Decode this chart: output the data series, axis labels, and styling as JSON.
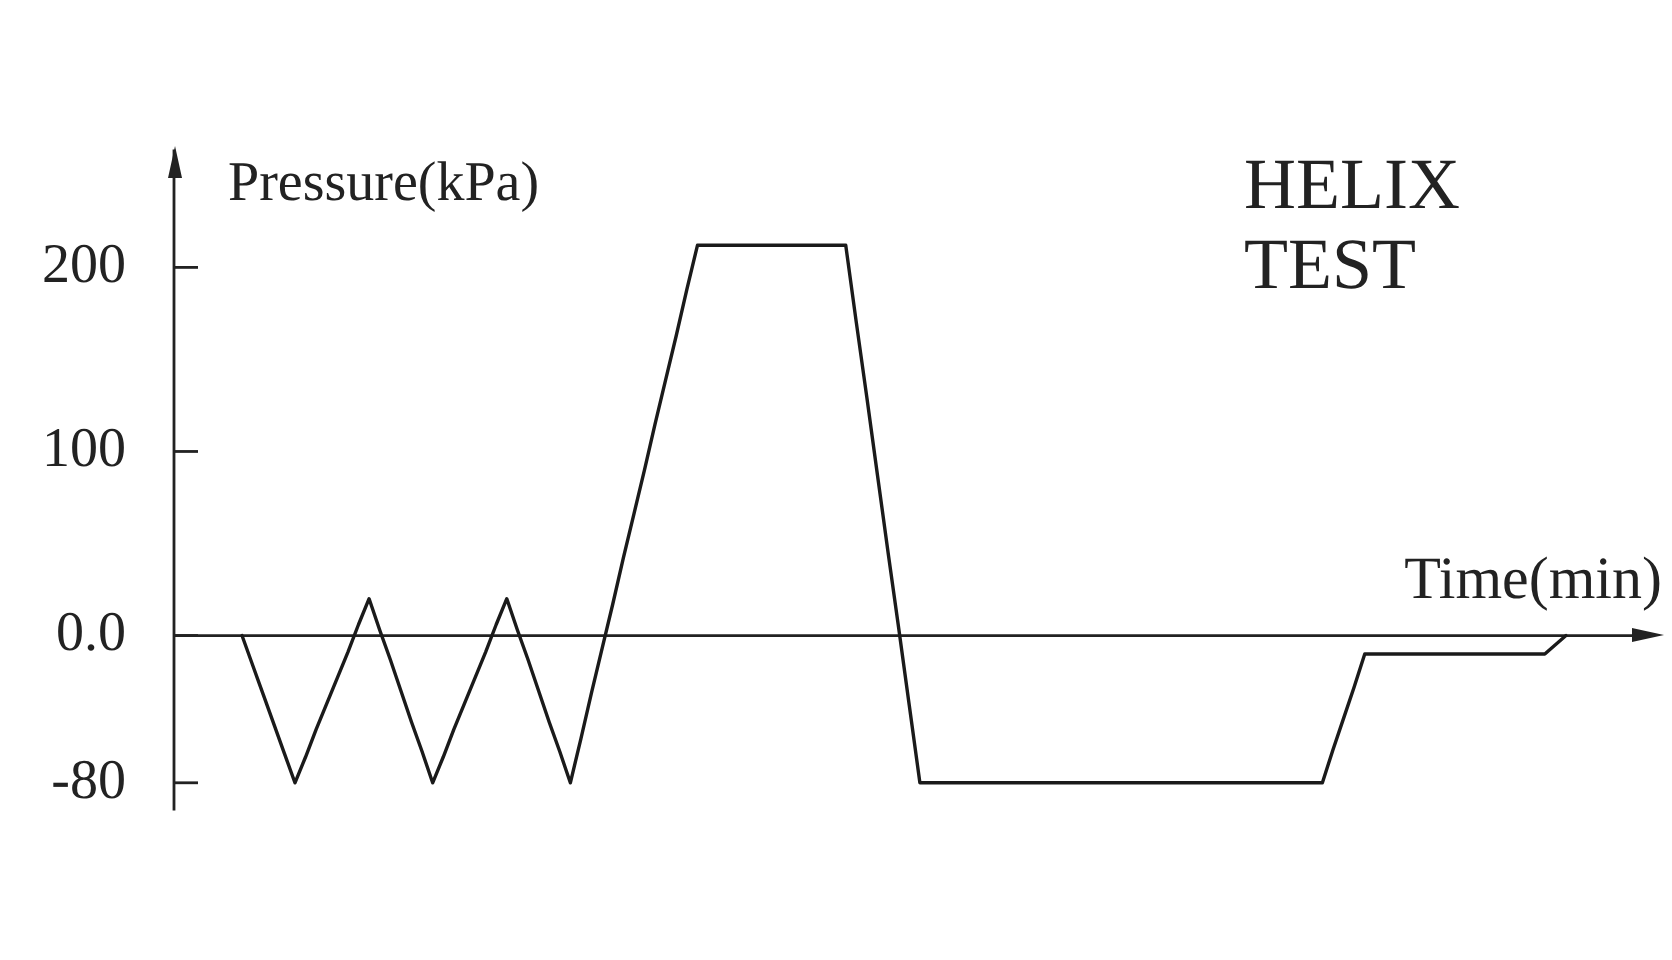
{
  "chart_data": {
    "type": "line",
    "title": "HELIX TEST",
    "xlabel": "Time(min)",
    "ylabel": "Pressure(kPa)",
    "tick_labels": "y",
    "categories": [
      null,
      null,
      null,
      null,
      null,
      null,
      null,
      null,
      null,
      null,
      null,
      null,
      null,
      null,
      null,
      null,
      null,
      null,
      null,
      null,
      null,
      null,
      null,
      null,
      null,
      null,
      null,
      null,
      null,
      null,
      null,
      null,
      null,
      null,
      null,
      null,
      null,
      null,
      null,
      null,
      null,
      null,
      null,
      null,
      null,
      null,
      null,
      null,
      null,
      null,
      null,
      null,
      null,
      null,
      null,
      null,
      null,
      null,
      null,
      null,
      null,
      null,
      null,
      null,
      null,
      null,
      null,
      null,
      null,
      null,
      null,
      null,
      null,
      null,
      null,
      null,
      null,
      null,
      null,
      null,
      null,
      null,
      null,
      null,
      null,
      null,
      null,
      null,
      null,
      null,
      null,
      null,
      null,
      null,
      null,
      null,
      null,
      null,
      null,
      null,
      null,
      null,
      null,
      null,
      null,
      null,
      null,
      null,
      null,
      null,
      null,
      null,
      null,
      null,
      null,
      null,
      null,
      null,
      null,
      null,
      null,
      null,
      null,
      null,
      null,
      null
    ],
    "series": [
      {
        "color": "#1a1a1a",
        "values": [
          0,
          -16,
          -32,
          -48,
          -64,
          -80,
          -66,
          -51,
          -37,
          -23,
          -9,
          6,
          20,
          3,
          -13,
          -30,
          -47,
          -63,
          -80,
          -66,
          -51,
          -37,
          -23,
          -9,
          6,
          20,
          3,
          -13,
          -30,
          -47,
          -63,
          -80,
          -56,
          -31,
          -7,
          17,
          42,
          66,
          90,
          115,
          139,
          163,
          188,
          212,
          212,
          212,
          212,
          212,
          212,
          212,
          212,
          212,
          212,
          212,
          212,
          212,
          212,
          212,
          170,
          129,
          87,
          45,
          4,
          -38,
          -80,
          -80,
          -80,
          -80,
          -80,
          -80,
          -80,
          -80,
          -80,
          -80,
          -80,
          -80,
          -80,
          -80,
          -80,
          -80,
          -80,
          -80,
          -80,
          -80,
          -80,
          -80,
          -80,
          -80,
          -80,
          -80,
          -80,
          -80,
          -80,
          -80,
          -80,
          -80,
          -80,
          -80,
          -80,
          -80,
          -80,
          -80,
          -80,
          -62,
          -45,
          -28,
          -10,
          -10,
          -10,
          -10,
          -10,
          -10,
          -10,
          -10,
          -10,
          -10,
          -10,
          -10,
          -10,
          -10,
          -10,
          -10,
          -10,
          -10,
          -5,
          0
        ]
      }
    ],
    "ylim": [
      -95,
      264
    ],
    "yticks": [
      -80,
      {
        "value": 0,
        "label": "0.0"
      },
      100,
      200
    ]
  }
}
